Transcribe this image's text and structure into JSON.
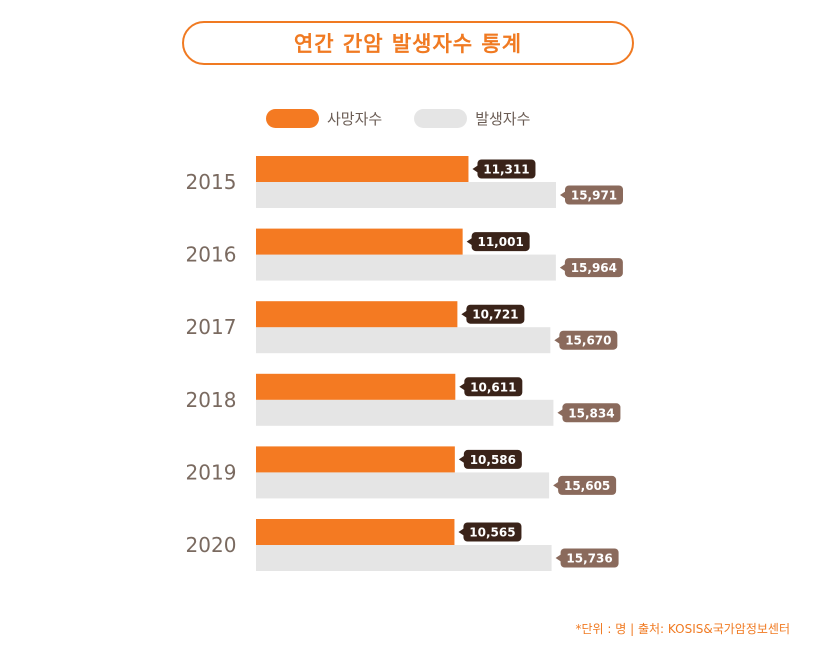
{
  "title": "연간 간암 발생자수 통계",
  "legend": {
    "deaths_label": "사망자수",
    "incidence_label": "발생자수"
  },
  "colors": {
    "deaths": "#f47a22",
    "incidence": "#e5e5e5",
    "deaths_label_bg": "#3a2319",
    "incidence_label_bg": "#8a6a5c",
    "year_text": "#7a6a60"
  },
  "chart_data": {
    "type": "bar",
    "orientation": "horizontal",
    "title": "연간 간암 발생자수 통계",
    "categories": [
      "2015",
      "2016",
      "2017",
      "2018",
      "2019",
      "2020"
    ],
    "series": [
      {
        "name": "사망자수",
        "values": [
          11311,
          11001,
          10721,
          10611,
          10586,
          10565
        ],
        "labels": [
          "11,311",
          "11,001",
          "10,721",
          "10,611",
          "10,586",
          "10,565"
        ]
      },
      {
        "name": "발생자수",
        "values": [
          15971,
          15964,
          15670,
          15834,
          15605,
          15736
        ],
        "labels": [
          "15,971",
          "15,964",
          "15,670",
          "15,834",
          "15,605",
          "15,736"
        ]
      }
    ],
    "legend_position": "top-center",
    "grid": false
  },
  "footnote": "*단위 : 명 | 출처: KOSIS&국가암정보센터"
}
